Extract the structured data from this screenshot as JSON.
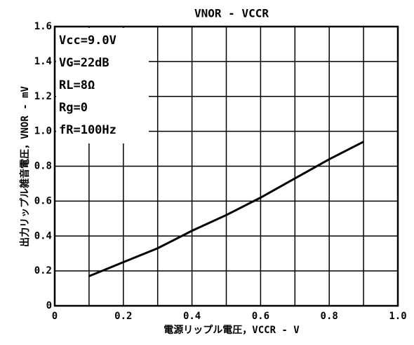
{
  "chart_data": {
    "type": "line",
    "title": "VNOR - VCCR",
    "x_label": "電源リップル電圧，VCCR - V",
    "y_label": "出力リップル雑音電圧，VNOR - mV",
    "annotations": [
      "Vcc=9.0V",
      "VG=22dB",
      "RL=8Ω",
      "Rg=0",
      "fR=100Hz"
    ],
    "x": [
      0.1,
      0.2,
      0.3,
      0.4,
      0.5,
      0.6,
      0.7,
      0.8,
      0.9
    ],
    "series": [
      {
        "color": "#000000",
        "values": [
          0.17,
          0.25,
          0.33,
          0.43,
          0.52,
          0.62,
          0.73,
          0.84,
          0.94
        ]
      }
    ],
    "xlim": [
      0,
      1
    ],
    "ylim": [
      0,
      1.6
    ],
    "xticks": [
      0,
      0.2,
      0.4,
      0.6,
      0.8,
      {
        "value": 1,
        "label": "1.0"
      }
    ],
    "xgrid": [
      0.1,
      0.2,
      0.3,
      0.4,
      0.5,
      0.6,
      0.7,
      0.8,
      0.9
    ],
    "yticks": [
      0,
      0.2,
      0.4,
      0.6,
      0.8,
      {
        "value": 1,
        "label": "1.0"
      },
      1.2,
      1.4,
      1.6
    ],
    "grid": true
  }
}
